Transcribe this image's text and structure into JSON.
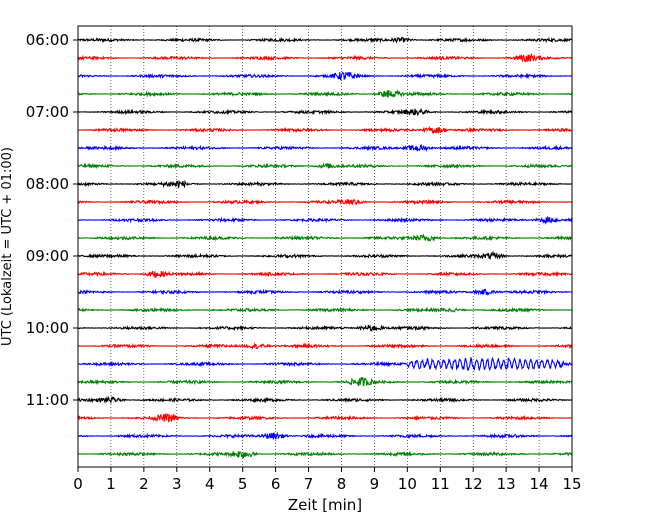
{
  "chart_data": {
    "type": "line",
    "xlabel": "Zeit  [min]",
    "ylabel": "UTC (Lokalzeit = UTC + 01:00)",
    "xlim": [
      0,
      15
    ],
    "x_ticks": [
      0,
      1,
      2,
      3,
      4,
      5,
      6,
      7,
      8,
      9,
      10,
      11,
      12,
      13,
      14,
      15
    ],
    "grid_x": true,
    "y_tick_labels": [
      "06:00",
      "07:00",
      "08:00",
      "09:00",
      "10:00",
      "11:00"
    ],
    "trace_interval_min": 15,
    "trace_start": "06:00",
    "trace_count": 24,
    "trace_colors": [
      "#000000",
      "#ff0000",
      "#0000ff",
      "#008000"
    ],
    "notable_event": {
      "trace_start": "10:30",
      "x_range": [
        10,
        14.8
      ],
      "note": "larger oscillations"
    }
  }
}
